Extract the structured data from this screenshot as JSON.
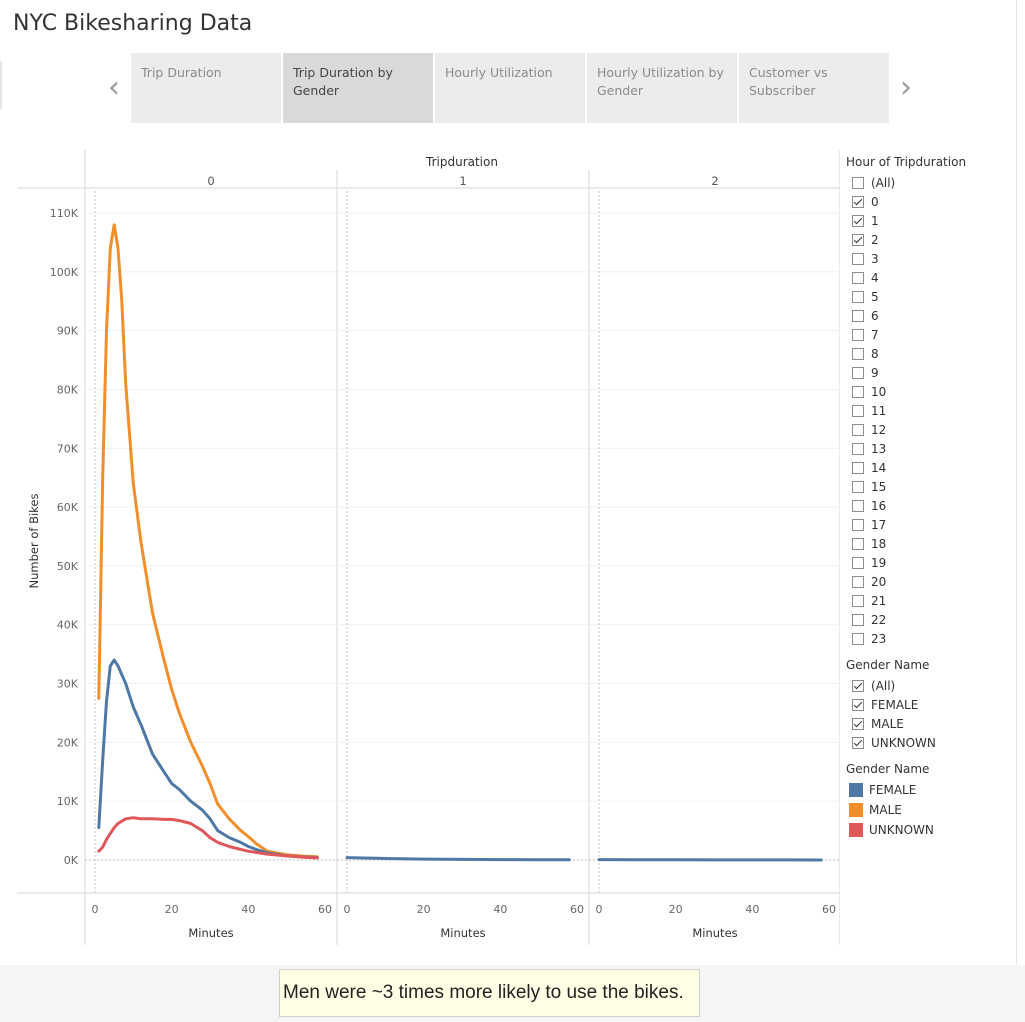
{
  "title": "NYC Bikesharing Data",
  "nav": {
    "prev_icon": "chevron-left-icon",
    "next_icon": "chevron-right-icon",
    "prev_glyph": "‹",
    "next_glyph": "›"
  },
  "tabs": [
    {
      "label": "Trip Duration",
      "active": false
    },
    {
      "label": "Trip Duration by Gender",
      "active": true
    },
    {
      "label": "Hourly Utilization",
      "active": false
    },
    {
      "label": "Hourly Utilization by Gender",
      "active": false
    },
    {
      "label": "Customer vs Subscriber",
      "active": false
    }
  ],
  "filters": {
    "hour": {
      "title": "Hour of Tripduration",
      "options": [
        {
          "label": "(All)",
          "checked": false
        },
        {
          "label": "0",
          "checked": true
        },
        {
          "label": "1",
          "checked": true
        },
        {
          "label": "2",
          "checked": true
        },
        {
          "label": "3",
          "checked": false
        },
        {
          "label": "4",
          "checked": false
        },
        {
          "label": "5",
          "checked": false
        },
        {
          "label": "6",
          "checked": false
        },
        {
          "label": "7",
          "checked": false
        },
        {
          "label": "8",
          "checked": false
        },
        {
          "label": "9",
          "checked": false
        },
        {
          "label": "10",
          "checked": false
        },
        {
          "label": "11",
          "checked": false
        },
        {
          "label": "12",
          "checked": false
        },
        {
          "label": "13",
          "checked": false
        },
        {
          "label": "14",
          "checked": false
        },
        {
          "label": "15",
          "checked": false
        },
        {
          "label": "16",
          "checked": false
        },
        {
          "label": "17",
          "checked": false
        },
        {
          "label": "18",
          "checked": false
        },
        {
          "label": "19",
          "checked": false
        },
        {
          "label": "20",
          "checked": false
        },
        {
          "label": "21",
          "checked": false
        },
        {
          "label": "22",
          "checked": false
        },
        {
          "label": "23",
          "checked": false
        }
      ]
    },
    "gender": {
      "title": "Gender Name",
      "options": [
        {
          "label": "(All)",
          "checked": true
        },
        {
          "label": "FEMALE",
          "checked": true
        },
        {
          "label": "MALE",
          "checked": true
        },
        {
          "label": "UNKNOWN",
          "checked": true
        }
      ]
    }
  },
  "legend": {
    "title": "Gender Name",
    "items": [
      {
        "label": "FEMALE",
        "color": "#4e79a7"
      },
      {
        "label": "MALE",
        "color": "#f28e2b"
      },
      {
        "label": "UNKNOWN",
        "color": "#e15759"
      }
    ]
  },
  "caption": "Men were ~3 times more likely to use the bikes.",
  "chart_data": {
    "type": "line",
    "column_header": "Tripduration",
    "panels": [
      "0",
      "1",
      "2"
    ],
    "ylabel": "Number of Bikes",
    "xlabel": "Minutes",
    "xlim": [
      0,
      60
    ],
    "ylim": [
      0,
      110000
    ],
    "xticks": [
      0,
      20,
      40,
      60
    ],
    "yticks": [
      0,
      10000,
      20000,
      30000,
      40000,
      50000,
      60000,
      70000,
      80000,
      90000,
      100000,
      110000
    ],
    "ytick_labels": [
      "0K",
      "10K",
      "20K",
      "30K",
      "40K",
      "50K",
      "60K",
      "70K",
      "80K",
      "90K",
      "100K",
      "110K"
    ],
    "series": [
      {
        "name": "MALE",
        "color": "#f28e2b",
        "panel": "0",
        "x": [
          1,
          2,
          3,
          4,
          5,
          6,
          7,
          8,
          10,
          12,
          15,
          18,
          20,
          22,
          25,
          28,
          30,
          32,
          35,
          38,
          40,
          42,
          45,
          50,
          55,
          58
        ],
        "y": [
          27500,
          65000,
          90000,
          104000,
          108000,
          104000,
          95000,
          81000,
          64000,
          54000,
          42000,
          34000,
          29000,
          25000,
          20000,
          16000,
          13000,
          9500,
          7000,
          5000,
          4000,
          2800,
          1500,
          900,
          650,
          550
        ]
      },
      {
        "name": "FEMALE",
        "color": "#4e79a7",
        "panel": "0",
        "x": [
          1,
          2,
          3,
          4,
          5,
          6,
          7,
          8,
          10,
          12,
          15,
          18,
          20,
          22,
          25,
          28,
          30,
          32,
          35,
          38,
          40,
          42,
          45,
          50,
          55,
          58
        ],
        "y": [
          5500,
          17000,
          27000,
          33000,
          34000,
          33000,
          31500,
          30000,
          26000,
          23000,
          18000,
          15000,
          13000,
          12000,
          10000,
          8500,
          7000,
          5000,
          3800,
          3000,
          2300,
          1800,
          1200,
          700,
          500,
          400
        ]
      },
      {
        "name": "UNKNOWN",
        "color": "#e15759",
        "panel": "0",
        "x": [
          1,
          2,
          3,
          4,
          5,
          6,
          8,
          10,
          12,
          15,
          18,
          20,
          22,
          25,
          28,
          30,
          32,
          35,
          38,
          40,
          42,
          45,
          50,
          55,
          58
        ],
        "y": [
          1500,
          2200,
          3500,
          4500,
          5500,
          6200,
          7000,
          7200,
          7000,
          7000,
          6900,
          6900,
          6700,
          6200,
          5000,
          3800,
          3000,
          2300,
          1800,
          1500,
          1300,
          1000,
          700,
          450,
          350
        ]
      },
      {
        "name": "FEMALE",
        "color": "#4e79a7",
        "panel": "1",
        "x": [
          0,
          10,
          20,
          30,
          40,
          50,
          58
        ],
        "y": [
          400,
          250,
          150,
          100,
          60,
          40,
          30
        ]
      },
      {
        "name": "FEMALE",
        "color": "#4e79a7",
        "panel": "2",
        "x": [
          0,
          10,
          20,
          30,
          40,
          50,
          58
        ],
        "y": [
          60,
          40,
          30,
          20,
          15,
          10,
          8
        ]
      }
    ],
    "grid": true
  }
}
